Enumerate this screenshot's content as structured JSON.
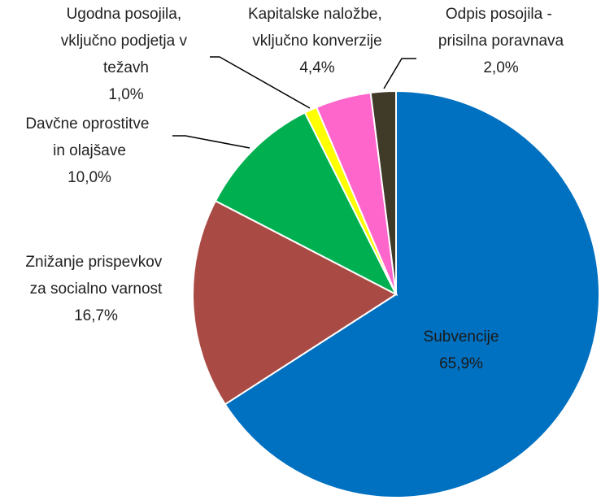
{
  "chart_data": {
    "type": "pie",
    "categories": [
      "Subvencije",
      "Znižanje prispevkov za socialno varnost",
      "Davčne oprostitve in olajšave",
      "Ugodna posojila, vključno podjetja v težavh",
      "Kapitalske naložbe, vključno konverzije",
      "Odpis posojila - prisilna poravnava"
    ],
    "values": [
      65.9,
      16.7,
      10.0,
      1.0,
      4.4,
      2.0
    ],
    "value_labels": [
      "65,9%",
      "16,7%",
      "10,0%",
      "1,0%",
      "4,4%",
      "2,0%"
    ],
    "colors": [
      "#0070c0",
      "#aa4a44",
      "#00b050",
      "#ffff00",
      "#ff66cc",
      "#403a28"
    ]
  }
}
